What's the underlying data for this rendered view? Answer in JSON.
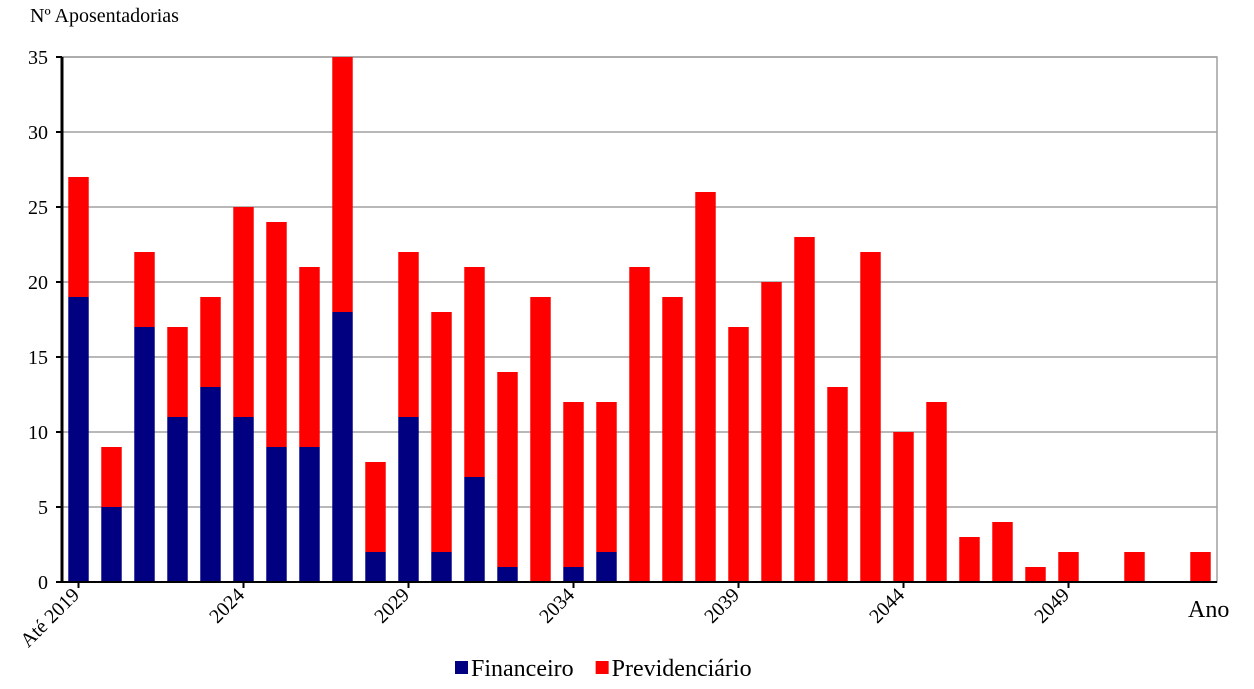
{
  "chart_data": {
    "type": "stacked_bar",
    "ylabel": "Nº Aposentadorias",
    "xlabel": "Ano",
    "categories": [
      "Até 2019",
      null,
      null,
      null,
      null,
      "2024",
      null,
      null,
      null,
      null,
      "2029",
      null,
      null,
      null,
      null,
      "2034",
      null,
      null,
      null,
      null,
      "2039",
      null,
      null,
      null,
      null,
      "2044",
      null,
      null,
      null,
      null,
      "2049",
      null,
      null,
      null,
      null
    ],
    "series": [
      {
        "name": "Financeiro",
        "color": "#000080",
        "values": [
          19,
          5,
          17,
          11,
          13,
          11,
          9,
          9,
          18,
          2,
          11,
          2,
          7,
          1,
          0,
          1,
          2,
          0,
          0,
          0,
          0,
          0,
          0,
          0,
          0,
          0,
          0,
          0,
          0,
          0,
          0,
          0,
          0,
          0,
          0
        ]
      },
      {
        "name": "Previdenciário",
        "color": "#ff0000",
        "values": [
          8,
          4,
          5,
          6,
          6,
          14,
          15,
          12,
          17,
          6,
          11,
          16,
          14,
          13,
          19,
          11,
          10,
          21,
          19,
          26,
          17,
          20,
          23,
          13,
          22,
          10,
          12,
          3,
          4,
          1,
          2,
          0,
          2,
          0,
          2
        ]
      }
    ],
    "ylim": [
      0,
      35
    ],
    "yticks": [
      0,
      5,
      10,
      15,
      20,
      25,
      30,
      35
    ],
    "grid": true
  }
}
